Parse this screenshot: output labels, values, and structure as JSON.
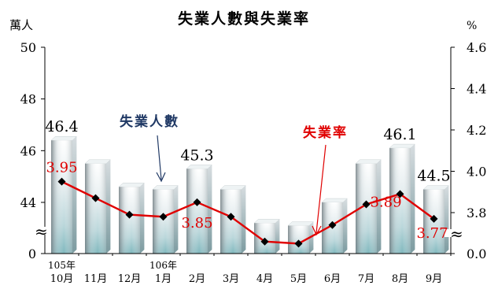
{
  "chart_data": {
    "type": "bar",
    "title": "失業人數與失業率",
    "left_unit": "萬人",
    "right_unit": "%",
    "categories": [
      {
        "year": "105年",
        "month": "10月"
      },
      {
        "year": "",
        "month": "11月"
      },
      {
        "year": "",
        "month": "12月"
      },
      {
        "year": "106年",
        "month": "1月"
      },
      {
        "year": "",
        "month": "2月"
      },
      {
        "year": "",
        "month": "3月"
      },
      {
        "year": "",
        "month": "4月"
      },
      {
        "year": "",
        "month": "5月"
      },
      {
        "year": "",
        "month": "6月"
      },
      {
        "year": "",
        "month": "7月"
      },
      {
        "year": "",
        "month": "8月"
      },
      {
        "year": "",
        "month": "9月"
      }
    ],
    "left_ticks": [
      "50",
      "48",
      "46",
      "44",
      "0"
    ],
    "right_ticks": [
      "4.6",
      "4.4",
      "4.2",
      "4.0",
      "3.8",
      "0.0"
    ],
    "series": [
      {
        "name": "失業人數",
        "axis": "left",
        "values": [
          46.4,
          45.5,
          44.6,
          44.5,
          45.3,
          44.5,
          43.2,
          43.1,
          44.0,
          45.5,
          46.1,
          44.5
        ],
        "labels": [
          {
            "index": 0,
            "text": "46.4"
          },
          {
            "index": 4,
            "text": "45.3"
          },
          {
            "index": 10,
            "text": "46.1"
          },
          {
            "index": 11,
            "text": "44.5"
          }
        ]
      },
      {
        "name": "失業率",
        "axis": "right",
        "values": [
          3.95,
          3.87,
          3.79,
          3.78,
          3.85,
          3.78,
          3.66,
          3.65,
          3.74,
          3.84,
          3.89,
          3.77
        ],
        "labels": [
          {
            "index": 0,
            "text": "3.95"
          },
          {
            "index": 4,
            "text": "3.85"
          },
          {
            "index": 10,
            "text": "3.89"
          },
          {
            "index": 11,
            "text": "3.77"
          }
        ]
      }
    ],
    "break_symbol": "≈",
    "colors": {
      "line": "#e00000",
      "marker": "#000000",
      "callout_left": "#1f3864",
      "callout_right": "#e00000",
      "bar_dark": "#7d8a90",
      "bar_light": "#f4fbfc",
      "bar_teal": "#8fc4c9"
    }
  }
}
